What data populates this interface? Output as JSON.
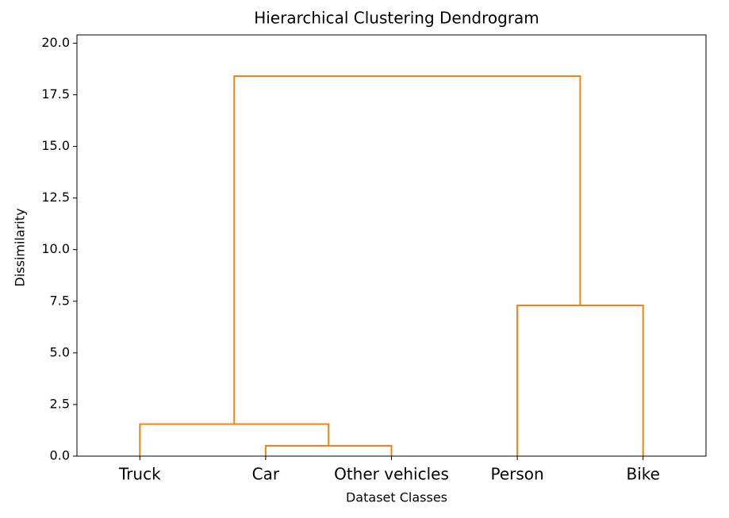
{
  "chart_data": {
    "type": "dendrogram",
    "title": "Hierarchical Clustering Dendrogram",
    "xlabel": "Dataset Classes",
    "ylabel": "Dissimilarity",
    "categories": [
      "Truck",
      "Car",
      "Other vehicles",
      "Person",
      "Bike"
    ],
    "merges": [
      {
        "children": [
          1,
          2
        ],
        "height": 0.5
      },
      {
        "children": [
          0,
          5
        ],
        "height": 1.55
      },
      {
        "children": [
          3,
          4
        ],
        "height": 7.3
      },
      {
        "children": [
          6,
          7
        ],
        "height": 18.4
      }
    ],
    "color": "#ff7f0e",
    "ylim": [
      0,
      20.4
    ],
    "yticks": [
      {
        "value": 0,
        "label": "0.0"
      },
      2.5,
      {
        "value": 5,
        "label": "5.0"
      },
      7.5,
      {
        "value": 10,
        "label": "10.0"
      },
      12.5,
      {
        "value": 15,
        "label": "15.0"
      },
      17.5,
      {
        "value": 20,
        "label": "20.0"
      }
    ]
  }
}
